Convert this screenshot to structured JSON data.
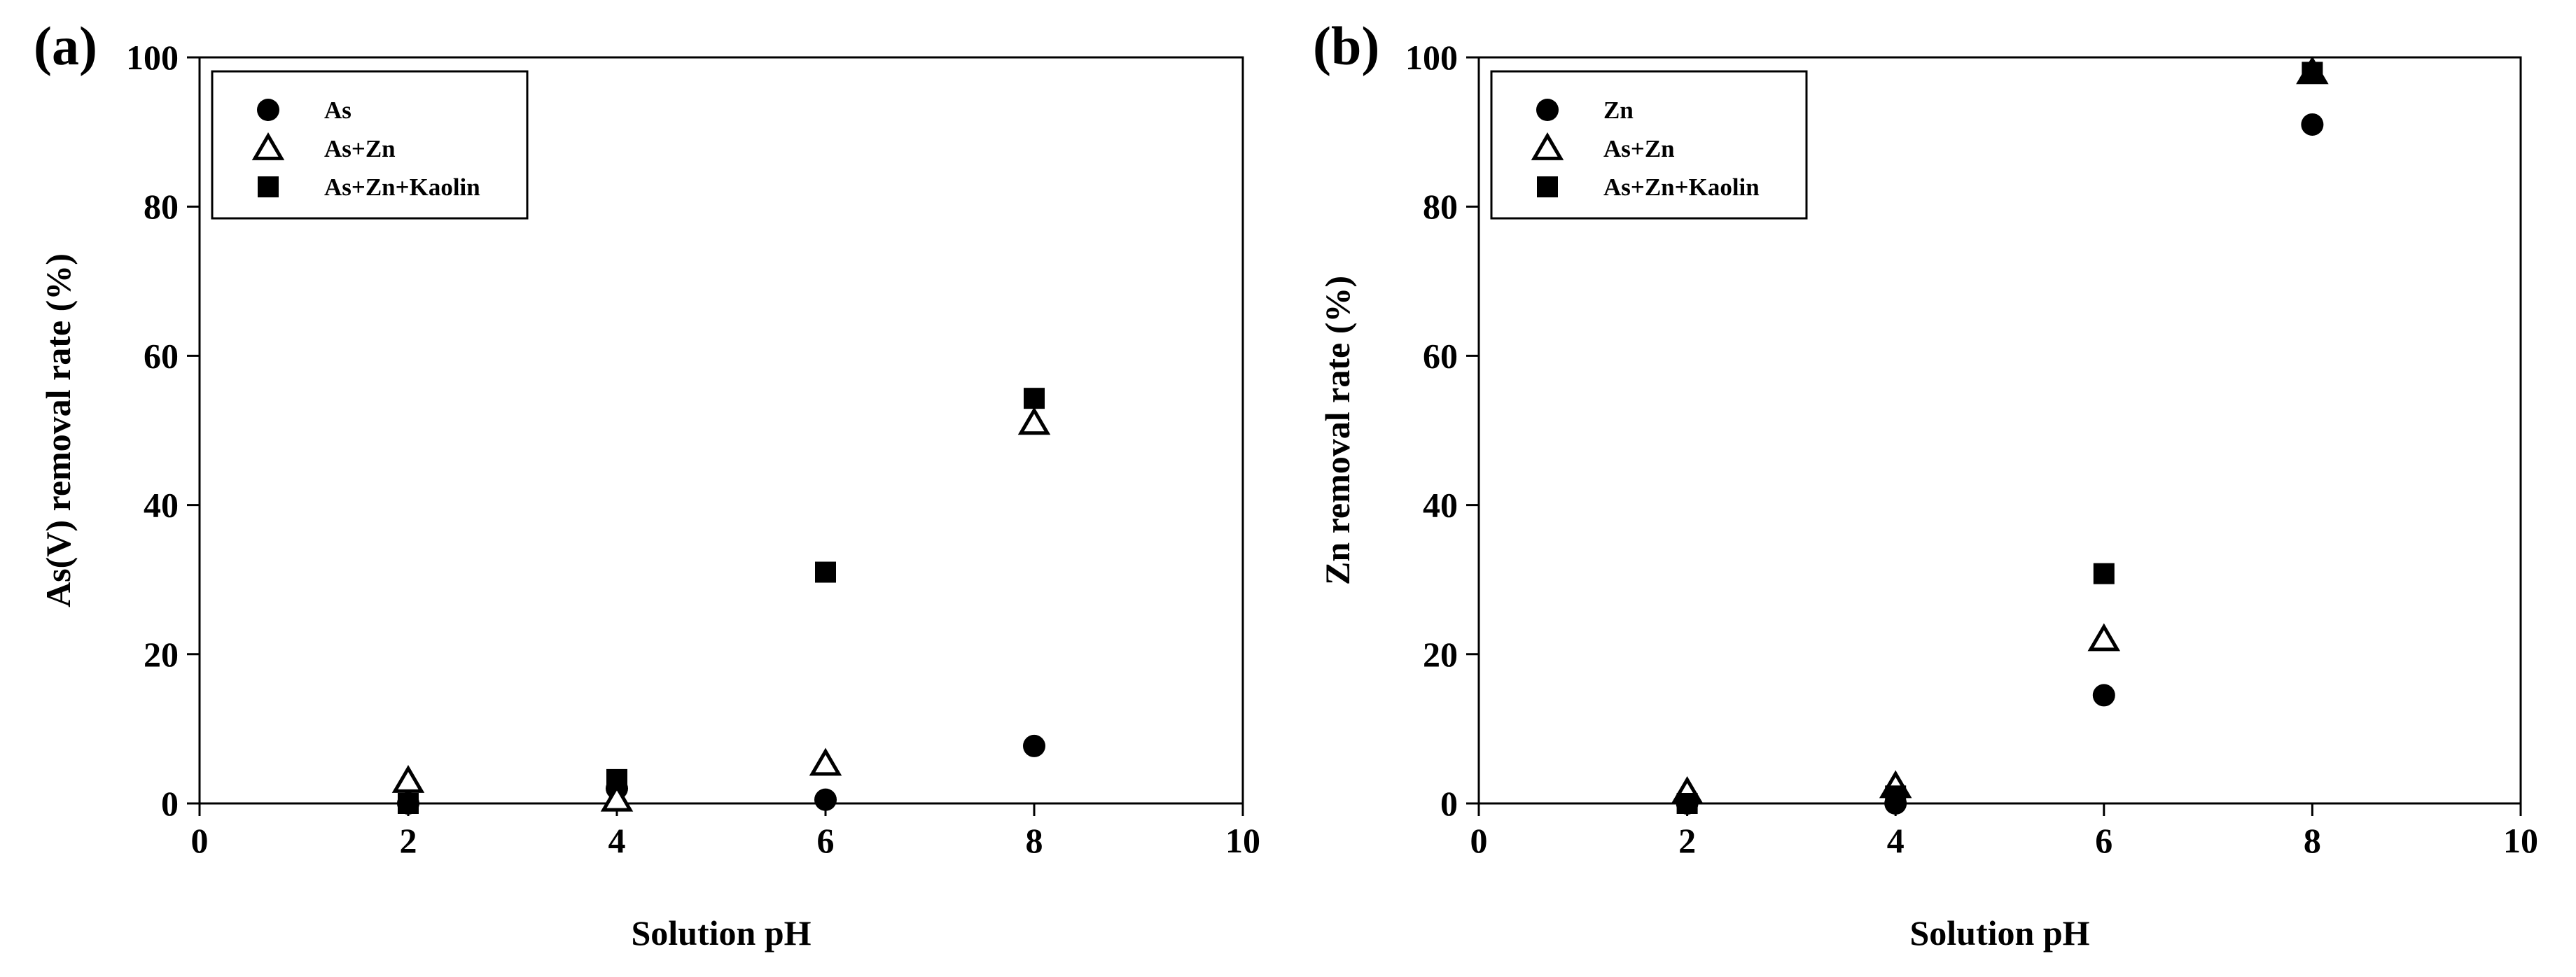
{
  "chart_data": [
    {
      "type": "scatter",
      "panel_label": "(a)",
      "xlabel": "Solution pH",
      "ylabel": "As(V) removal rate (%)",
      "xlim": [
        0,
        10
      ],
      "ylim": [
        0,
        100
      ],
      "xticks": [
        0,
        2,
        4,
        6,
        8,
        10
      ],
      "yticks": [
        0,
        20,
        40,
        60,
        80,
        100
      ],
      "grid": false,
      "legend_position": "top-left",
      "series": [
        {
          "name": "As",
          "marker": "filled-circle",
          "x": [
            2,
            4,
            6,
            8
          ],
          "y": [
            0.0,
            2.0,
            0.5,
            7.7
          ]
        },
        {
          "name": "As+Zn",
          "marker": "open-triangle",
          "x": [
            2,
            4,
            6,
            8
          ],
          "y": [
            3.0,
            0.5,
            5.3,
            51.0
          ]
        },
        {
          "name": "As+Zn+Kaolin",
          "marker": "filled-square",
          "x": [
            2,
            4,
            6,
            8
          ],
          "y": [
            0.0,
            3.2,
            31.0,
            54.3
          ]
        }
      ]
    },
    {
      "type": "scatter",
      "panel_label": "(b)",
      "xlabel": "Solution pH",
      "ylabel": "Zn removal rate (%)",
      "xlim": [
        0,
        10
      ],
      "ylim": [
        0,
        100
      ],
      "xticks": [
        0,
        2,
        4,
        6,
        8,
        10
      ],
      "yticks": [
        0,
        20,
        40,
        60,
        80,
        100
      ],
      "grid": false,
      "legend_position": "top-left",
      "series": [
        {
          "name": "Zn",
          "marker": "filled-circle",
          "x": [
            2,
            4,
            6,
            8
          ],
          "y": [
            0.0,
            0.0,
            14.5,
            91.0
          ]
        },
        {
          "name": "As+Zn",
          "marker": "open-triangle",
          "x": [
            2,
            4,
            6,
            8
          ],
          "y": [
            1.5,
            2.3,
            22.0,
            98.0
          ]
        },
        {
          "name": "As+Zn+Kaolin",
          "marker": "filled-square",
          "x": [
            2,
            4,
            6,
            8
          ],
          "y": [
            0.0,
            1.0,
            30.8,
            98.0
          ]
        }
      ]
    }
  ]
}
